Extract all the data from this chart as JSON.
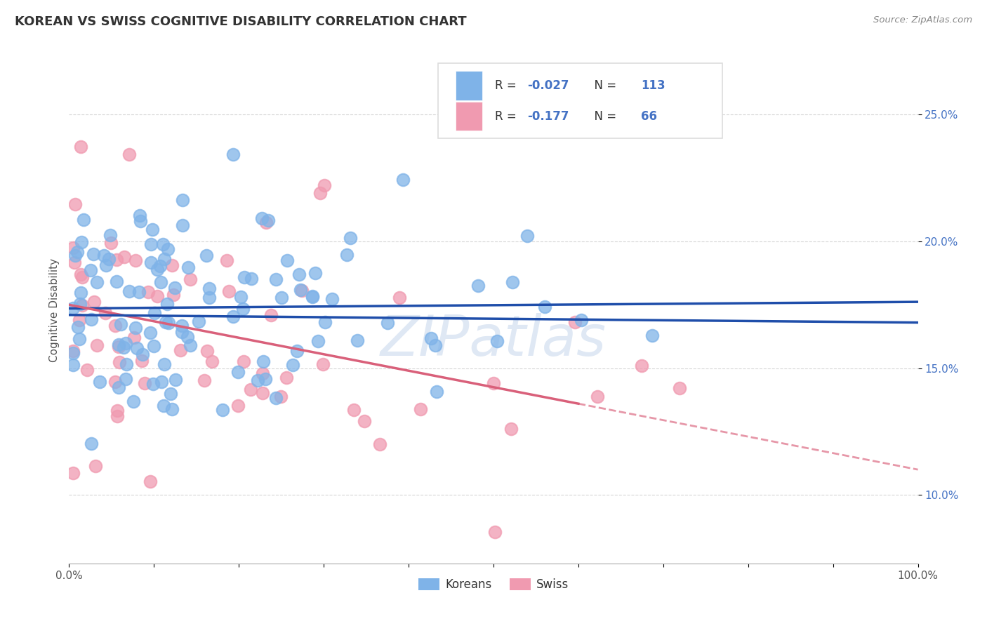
{
  "title": "KOREAN VS SWISS COGNITIVE DISABILITY CORRELATION CHART",
  "source": "Source: ZipAtlas.com",
  "ylabel": "Cognitive Disability",
  "yticks_labels": [
    "10.0%",
    "15.0%",
    "20.0%",
    "25.0%"
  ],
  "ytick_vals": [
    0.1,
    0.15,
    0.2,
    0.25
  ],
  "xlim": [
    0.0,
    1.0
  ],
  "ylim": [
    0.073,
    0.273
  ],
  "korean_color": "#7fb3e8",
  "swiss_color": "#f09ab0",
  "korean_line_color": "#1f4eaa",
  "swiss_line_color": "#d9607a",
  "watermark": "ZIPatlas",
  "background_color": "#ffffff",
  "grid_color": "#cccccc",
  "title_fontsize": 13,
  "axis_label_fontsize": 11,
  "tick_fontsize": 11,
  "korean_R": -0.027,
  "korean_N": 113,
  "swiss_R": -0.177,
  "swiss_N": 66,
  "legend_text1": "R = -0.027   N = 113",
  "legend_text2": "R =  -0.177   N =  66",
  "legend_number_color": "#4472c4",
  "bottom_legend_labels": [
    "Koreans",
    "Swiss"
  ]
}
